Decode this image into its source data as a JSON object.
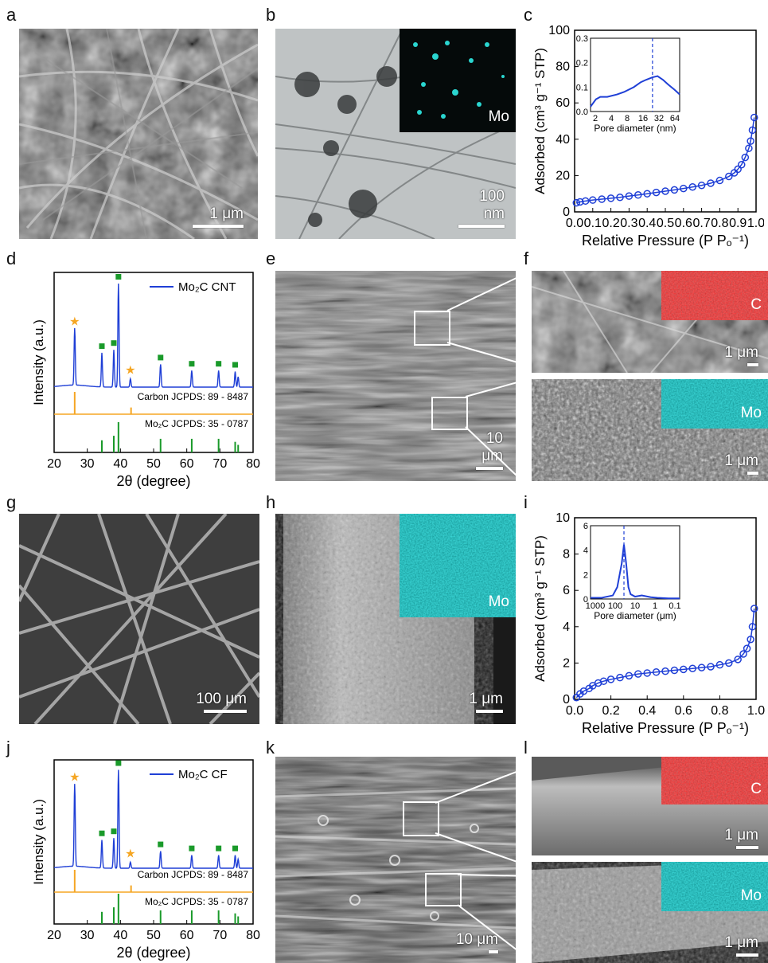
{
  "panels": {
    "a": {
      "label": "a",
      "scale": "1 μm"
    },
    "b": {
      "label": "b",
      "scale": "100 nm",
      "map": "Mo"
    },
    "c": {
      "label": "c"
    },
    "d": {
      "label": "d"
    },
    "e": {
      "label": "e",
      "scale": "10 μm"
    },
    "f": {
      "label": "f",
      "top_map": "C",
      "bottom_map": "Mo",
      "top_scale": "1 μm",
      "bottom_scale": "1 μm"
    },
    "g": {
      "label": "g",
      "scale": "100 μm"
    },
    "h": {
      "label": "h",
      "scale": "1 μm",
      "map": "Mo"
    },
    "i": {
      "label": "i"
    },
    "j": {
      "label": "j"
    },
    "k": {
      "label": "k",
      "scale": "10 μm"
    },
    "l": {
      "label": "l",
      "top_map": "C",
      "bottom_map": "Mo",
      "top_scale": "1 μm",
      "bottom_scale": "1 μm"
    }
  },
  "colors": {
    "line": "#1f3fd6",
    "carbon": "#f5a623",
    "mo2c": "#1a9a2a",
    "c_map": "#b81a1a",
    "mo_map": "#0e8a86"
  },
  "chart_data": [
    {
      "id": "c",
      "type": "scatter",
      "xlabel": "Relative Pressure (P Pₒ⁻¹)",
      "ylabel": "Adsorbed (cm³ g⁻¹ STP)",
      "xlim": [
        0,
        1.0
      ],
      "ylim": [
        0,
        100
      ],
      "xticks": [
        "0.0",
        "0.1",
        "0.2",
        "0.3",
        "0.4",
        "0.5",
        "0.6",
        "0.7",
        "0.8",
        "0.9",
        "1.0"
      ],
      "yticks": [
        "0",
        "20",
        "40",
        "60",
        "80",
        "100"
      ],
      "x": [
        0.01,
        0.03,
        0.06,
        0.1,
        0.15,
        0.2,
        0.25,
        0.3,
        0.35,
        0.4,
        0.45,
        0.5,
        0.55,
        0.6,
        0.65,
        0.7,
        0.75,
        0.8,
        0.85,
        0.88,
        0.9,
        0.92,
        0.94,
        0.96,
        0.97,
        0.98,
        0.99
      ],
      "y": [
        5,
        5.5,
        6,
        6.5,
        7,
        7.5,
        8,
        8.7,
        9.3,
        10,
        10.7,
        11.4,
        12.1,
        12.9,
        13.7,
        14.6,
        15.8,
        17.3,
        19.5,
        21.5,
        23.5,
        26,
        30,
        35,
        39,
        45,
        52
      ],
      "inset": {
        "xlabel": "Pore diameter (nm)",
        "xticks": [
          "2",
          "4",
          "8",
          "16",
          "32",
          "64"
        ],
        "yticks": [
          "0.0",
          "0.1",
          "0.2",
          "0.3"
        ],
        "ylim": [
          0,
          0.3
        ],
        "x": [
          2,
          2.5,
          3,
          4,
          6,
          8,
          12,
          16,
          20,
          26,
          32,
          40,
          50,
          64,
          80
        ],
        "y": [
          0.02,
          0.05,
          0.06,
          0.06,
          0.07,
          0.08,
          0.1,
          0.12,
          0.13,
          0.14,
          0.145,
          0.13,
          0.11,
          0.09,
          0.07
        ],
        "peak": 26
      }
    },
    {
      "id": "d",
      "type": "line",
      "legend": "Mo₂C CNT",
      "xlabel": "2θ (degree)",
      "ylabel": "Intensity (a.u.)",
      "xlim": [
        20,
        80
      ],
      "xticks": [
        "20",
        "30",
        "40",
        "50",
        "60",
        "70",
        "80"
      ],
      "peaks": [
        [
          26.2,
          0.55
        ],
        [
          34.4,
          0.33
        ],
        [
          38.0,
          0.36
        ],
        [
          39.4,
          1.0
        ],
        [
          43,
          0.08
        ],
        [
          52.1,
          0.22
        ],
        [
          61.5,
          0.16
        ],
        [
          69.6,
          0.16
        ],
        [
          74.6,
          0.15
        ],
        [
          75.5,
          0.1
        ]
      ],
      "carbon_ref": "Carbon JCPDS: 89 - 8487",
      "mo2c_ref": "Mo₂C JCPDS: 35 - 0787",
      "carbon_lines": [
        [
          26.2,
          1.0
        ],
        [
          43.2,
          0.3
        ]
      ],
      "mo2c_lines": [
        [
          34.4,
          0.4
        ],
        [
          38.0,
          0.55
        ],
        [
          39.4,
          1.0
        ],
        [
          52.1,
          0.45
        ],
        [
          61.5,
          0.45
        ],
        [
          69.6,
          0.45
        ],
        [
          74.6,
          0.35
        ],
        [
          75.5,
          0.25
        ]
      ],
      "star_peaks": [
        26.2,
        43.0
      ],
      "square_peaks": [
        34.4,
        38.0,
        39.4,
        52.1,
        61.5,
        69.6,
        74.6
      ]
    },
    {
      "id": "i",
      "type": "scatter",
      "xlabel": "Relative Pressure (P Pₒ⁻¹)",
      "ylabel": "Adsorbed (cm³ g⁻¹ STP)",
      "xlim": [
        0,
        1.0
      ],
      "ylim": [
        0,
        10
      ],
      "xticks": [
        "0.0",
        "0.2",
        "0.4",
        "0.6",
        "0.8",
        "1.0"
      ],
      "yticks": [
        "0",
        "2",
        "4",
        "6",
        "8",
        "10"
      ],
      "x": [
        0.01,
        0.03,
        0.05,
        0.08,
        0.1,
        0.13,
        0.16,
        0.2,
        0.25,
        0.3,
        0.35,
        0.4,
        0.45,
        0.5,
        0.55,
        0.6,
        0.65,
        0.7,
        0.75,
        0.8,
        0.85,
        0.9,
        0.93,
        0.95,
        0.97,
        0.98,
        0.99
      ],
      "y": [
        0.1,
        0.3,
        0.45,
        0.6,
        0.75,
        0.9,
        1.0,
        1.1,
        1.2,
        1.3,
        1.4,
        1.45,
        1.5,
        1.55,
        1.6,
        1.65,
        1.7,
        1.75,
        1.8,
        1.9,
        2.0,
        2.2,
        2.5,
        2.8,
        3.3,
        4.0,
        5.0
      ],
      "inset": {
        "xlabel": "Pore diameter (μm)",
        "xticks": [
          "1000",
          "100",
          "10",
          "1",
          "0.1"
        ],
        "yticks": [
          "0",
          "2",
          "4",
          "6"
        ],
        "ylim": [
          0,
          6.2
        ],
        "x": [
          0,
          0.5,
          1,
          1.2,
          1.4,
          1.5,
          1.6,
          1.7,
          1.8,
          2,
          2.3,
          2.7,
          3,
          3.5,
          4
        ],
        "y": [
          0.1,
          0.1,
          0.3,
          1,
          3,
          4.6,
          3,
          1,
          0.4,
          0.2,
          0.3,
          0.15,
          0.1,
          0.05,
          0.05
        ],
        "peak": 1.5
      }
    },
    {
      "id": "j",
      "type": "line",
      "legend": "Mo₂C CF",
      "xlabel": "2θ (degree)",
      "ylabel": "Intensity (a.u.)",
      "xlim": [
        20,
        80
      ],
      "xticks": [
        "20",
        "30",
        "40",
        "50",
        "60",
        "70",
        "80"
      ],
      "peaks": [
        [
          26.2,
          0.82
        ],
        [
          34.4,
          0.28
        ],
        [
          38.0,
          0.3
        ],
        [
          39.4,
          0.98
        ],
        [
          43,
          0.06
        ],
        [
          52.1,
          0.17
        ],
        [
          61.5,
          0.13
        ],
        [
          69.6,
          0.13
        ],
        [
          74.6,
          0.13
        ],
        [
          75.5,
          0.09
        ]
      ],
      "carbon_ref": "Carbon JCPDS: 89 - 8487",
      "mo2c_ref": "Mo₂C JCPDS: 35 - 0787",
      "carbon_lines": [
        [
          26.2,
          1.0
        ],
        [
          43.2,
          0.3
        ]
      ],
      "mo2c_lines": [
        [
          34.4,
          0.4
        ],
        [
          38.0,
          0.55
        ],
        [
          39.4,
          1.0
        ],
        [
          52.1,
          0.45
        ],
        [
          61.5,
          0.45
        ],
        [
          69.6,
          0.45
        ],
        [
          74.6,
          0.35
        ],
        [
          75.5,
          0.25
        ]
      ],
      "star_peaks": [
        26.2,
        43.0
      ],
      "square_peaks": [
        34.4,
        38.0,
        39.4,
        52.1,
        61.5,
        69.6,
        74.6
      ]
    }
  ]
}
